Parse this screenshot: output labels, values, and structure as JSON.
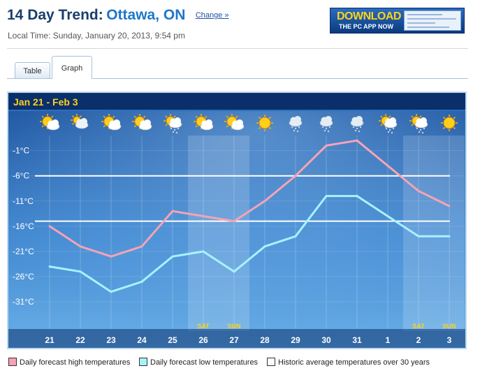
{
  "header": {
    "title_prefix": "14 Day Trend:",
    "city": "Ottawa, ON",
    "change_link": "Change »",
    "local_time": "Local Time: Sunday, January 20, 2013, 9:54 pm"
  },
  "banner": {
    "big_text": "DOWNLOAD",
    "small_text": "THE PC APP NOW"
  },
  "tabs": [
    {
      "label": "Table",
      "active": false
    },
    {
      "label": "Graph",
      "active": true
    }
  ],
  "chart_data": {
    "type": "line",
    "title": "Jan 21  -  Feb 3",
    "categories": [
      "21",
      "22",
      "23",
      "24",
      "25",
      "26",
      "27",
      "28",
      "29",
      "30",
      "31",
      "1",
      "2",
      "3"
    ],
    "weekday_labels": [
      "",
      "",
      "",
      "",
      "",
      "SAT",
      "SUN",
      "",
      "",
      "",
      "",
      "",
      "SAT",
      "SUN"
    ],
    "weekend_indices": [
      5,
      6,
      12,
      13
    ],
    "icons": [
      "sun-cloud",
      "cloud",
      "sun-cloud",
      "sun-cloud",
      "cloud-snow",
      "sun-cloud",
      "sun-cloud",
      "sun",
      "snow-cloud",
      "snow-cloud",
      "snow-cloud",
      "cloud-snow",
      "cloud-snow",
      "sun"
    ],
    "y_ticks": [
      -1,
      -6,
      -11,
      -16,
      -21,
      -26,
      -31
    ],
    "y_tick_labels": [
      "-1°C",
      "-6°C",
      "-11°C",
      "-16°C",
      "-21°C",
      "-26°C",
      "-31°C"
    ],
    "ylim": [
      -35,
      2
    ],
    "series": [
      {
        "name": "Daily forecast high temperatures",
        "color": "#f5a3b5",
        "values": [
          -16,
          -20,
          -22,
          -20,
          -13,
          -14,
          -15,
          -11,
          -6,
          0,
          1,
          -4,
          -9,
          -12
        ]
      },
      {
        "name": "Daily forecast low temperatures",
        "color": "#a8f2ff",
        "values": [
          -24,
          -25,
          -29,
          -27,
          -22,
          -21,
          -25,
          -20,
          -18,
          -10,
          -10,
          -14,
          -18,
          -18
        ]
      }
    ],
    "historic_average": {
      "name": "Historic average temperatures over 30 years",
      "color": "#ffffff",
      "high": -6,
      "low": -15
    },
    "grid": true
  }
}
